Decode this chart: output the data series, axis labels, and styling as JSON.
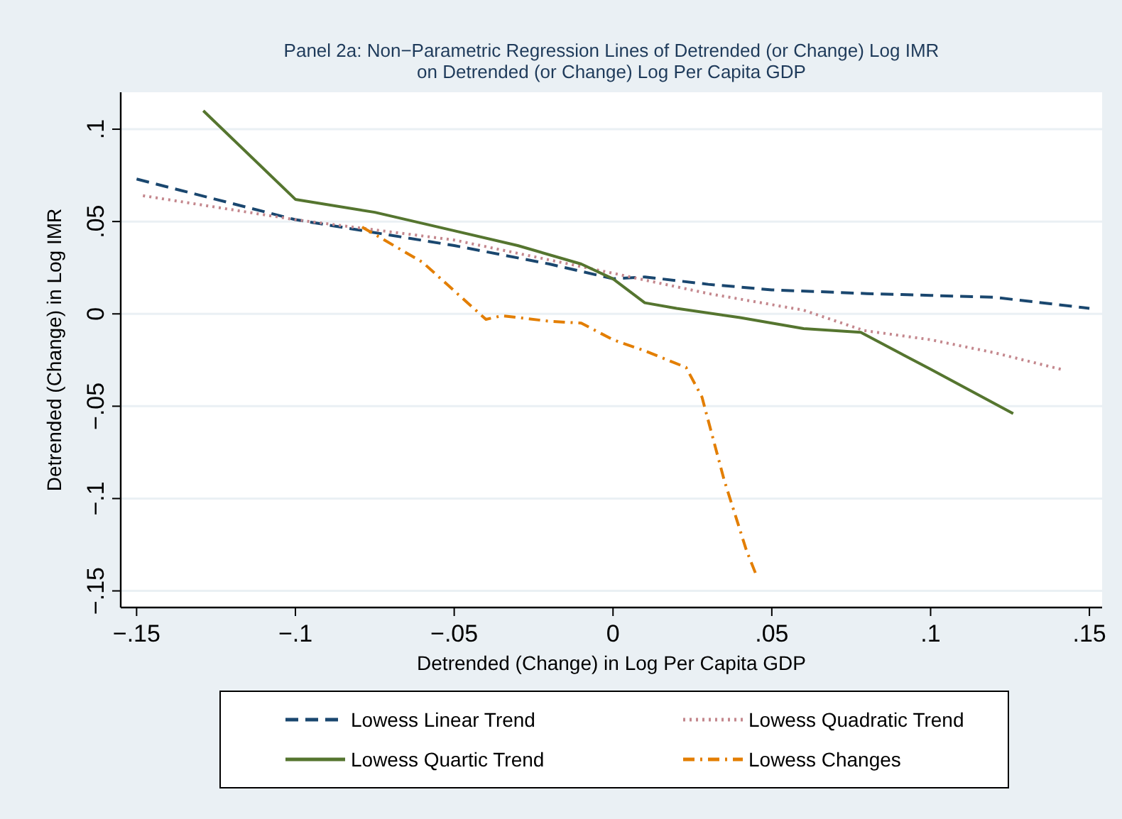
{
  "chart_data": {
    "type": "line",
    "title": "Panel 2a: Non−Parametric Regression Lines of Detrended (or Change) Log IMR",
    "subtitle": "on Detrended (or Change) Log Per Capita GDP",
    "xlabel": "Detrended (Change) in Log Per Capita GDP",
    "ylabel": "Detrended (Change) in Log IMR",
    "xlim": [
      -0.155,
      0.154
    ],
    "ylim": [
      -0.159,
      0.12
    ],
    "xticks": [
      {
        "value": -0.15,
        "label": "−.15"
      },
      {
        "value": -0.1,
        "label": "−.1"
      },
      {
        "value": -0.05,
        "label": "−.05"
      },
      0,
      {
        "value": 0.05,
        "label": ".05"
      },
      {
        "value": 0.1,
        "label": ".1"
      },
      {
        "value": 0.15,
        "label": ".15"
      }
    ],
    "yticks": [
      {
        "value": -0.15,
        "label": "−.15"
      },
      {
        "value": -0.1,
        "label": "−.1"
      },
      {
        "value": -0.05,
        "label": "−.05"
      },
      0,
      {
        "value": 0.05,
        "label": ".05"
      },
      {
        "value": 0.1,
        "label": ".1"
      }
    ],
    "grid": "y",
    "legend": "bottom",
    "series": [
      {
        "name": "Lowess Linear Trend",
        "color": "#1a476f",
        "line_style": "dashed",
        "x": [
          -0.15,
          -0.1,
          -0.05,
          -0.02,
          0,
          0.01,
          0.03,
          0.05,
          0.08,
          0.1,
          0.12,
          0.15
        ],
        "values": [
          0.073,
          0.051,
          0.037,
          0.027,
          0.019,
          0.02,
          0.016,
          0.013,
          0.011,
          0.01,
          0.009,
          0.003
        ]
      },
      {
        "name": "Lowess Quadratic Trend",
        "color": "#c4878d",
        "line_style": "dotted",
        "x": [
          -0.148,
          -0.1,
          -0.05,
          0,
          0.03,
          0.06,
          0.079,
          0.1,
          0.12,
          0.141
        ],
        "values": [
          0.064,
          0.051,
          0.04,
          0.022,
          0.011,
          0.002,
          -0.009,
          -0.014,
          -0.021,
          -0.03
        ]
      },
      {
        "name": "Lowess Quartic Trend",
        "color": "#55752f",
        "line_style": "solid",
        "x": [
          -0.129,
          -0.1,
          -0.075,
          -0.05,
          -0.03,
          -0.01,
          0,
          0.01,
          0.02,
          0.04,
          0.06,
          0.078,
          0.1,
          0.126
        ],
        "values": [
          0.11,
          0.062,
          0.055,
          0.045,
          0.037,
          0.027,
          0.019,
          0.006,
          0.003,
          -0.002,
          -0.008,
          -0.01,
          -0.03,
          -0.054
        ]
      },
      {
        "name": "Lowess Changes",
        "color": "#e37e00",
        "line_style": "dashdot",
        "x": [
          -0.079,
          -0.06,
          -0.04,
          -0.035,
          -0.02,
          -0.01,
          0,
          0.01,
          0.023,
          0.028,
          0.035,
          0.042,
          0.045
        ],
        "values": [
          0.047,
          0.028,
          -0.003,
          -0.001,
          -0.004,
          -0.005,
          -0.014,
          -0.02,
          -0.029,
          -0.045,
          -0.09,
          -0.128,
          -0.141
        ]
      }
    ]
  }
}
